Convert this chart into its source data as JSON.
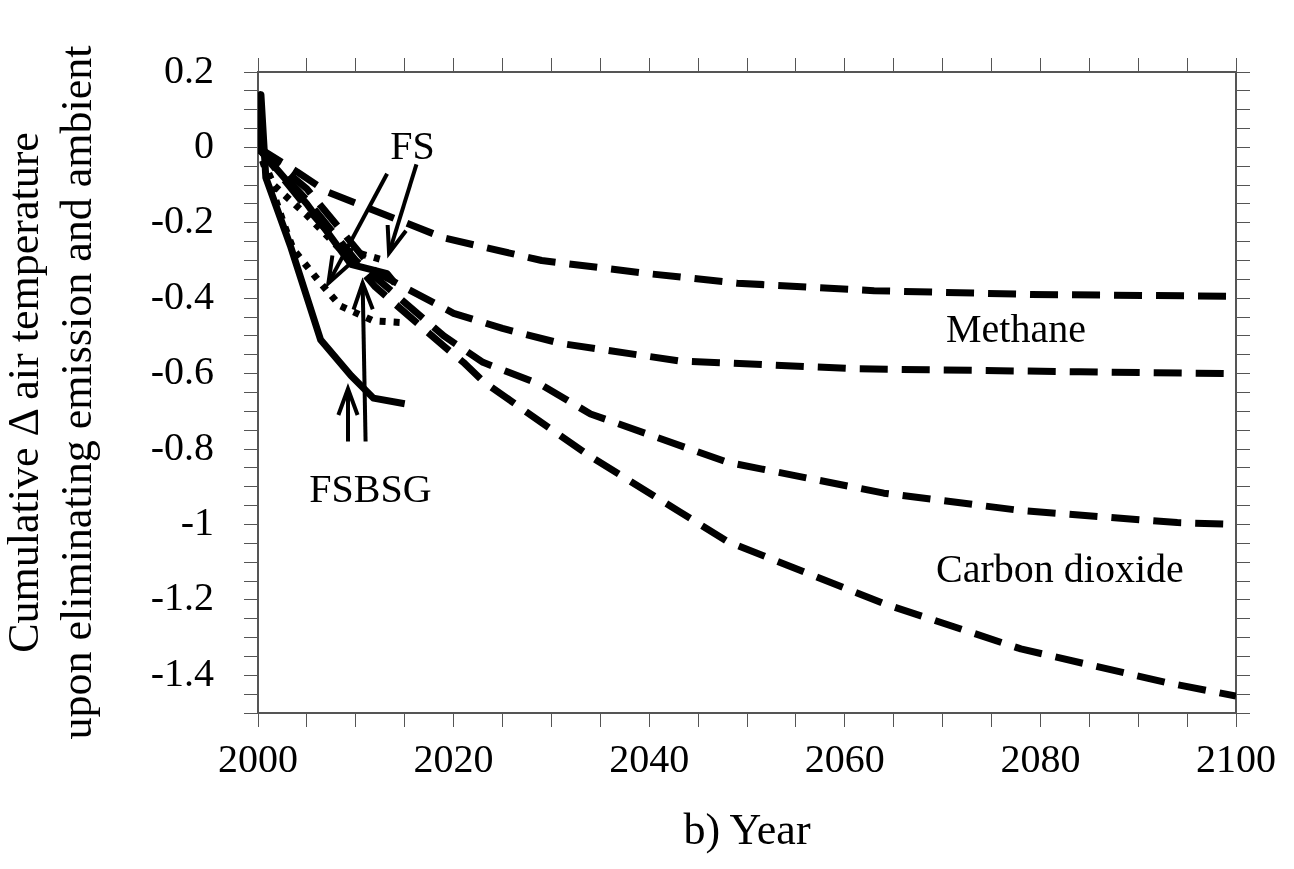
{
  "chart_data": {
    "type": "line",
    "xlabel": "b) Year",
    "ylabel": "Cumulative Δ air temperature\nupon eliminating emission and ambient",
    "xlim": [
      2000,
      2100
    ],
    "ylim": [
      -1.5,
      0.2
    ],
    "xticks": [
      2000,
      {
        "value": 2005,
        "label": null
      },
      {
        "value": 2010,
        "label": null
      },
      {
        "value": 2015,
        "label": null
      },
      2020,
      {
        "value": 2025,
        "label": null
      },
      {
        "value": 2030,
        "label": null
      },
      {
        "value": 2035,
        "label": null
      },
      2040,
      {
        "value": 2045,
        "label": null
      },
      {
        "value": 2050,
        "label": null
      },
      {
        "value": 2055,
        "label": null
      },
      2060,
      {
        "value": 2065,
        "label": null
      },
      {
        "value": 2070,
        "label": null
      },
      {
        "value": 2075,
        "label": null
      },
      2080,
      {
        "value": 2085,
        "label": null
      },
      {
        "value": 2090,
        "label": null
      },
      {
        "value": 2095,
        "label": null
      },
      2100
    ],
    "yticks": [
      0.2,
      {
        "value": 0.15,
        "label": null
      },
      {
        "value": 0.1,
        "label": null
      },
      {
        "value": 0.05,
        "label": null
      },
      0,
      {
        "value": -0.05,
        "label": null
      },
      {
        "value": -0.1,
        "label": null
      },
      {
        "value": -0.15,
        "label": null
      },
      -0.2,
      {
        "value": -0.25,
        "label": null
      },
      {
        "value": -0.3,
        "label": null
      },
      {
        "value": -0.35,
        "label": null
      },
      -0.4,
      {
        "value": -0.45,
        "label": null
      },
      {
        "value": -0.5,
        "label": null
      },
      {
        "value": -0.55,
        "label": null
      },
      -0.6,
      {
        "value": -0.65,
        "label": null
      },
      {
        "value": -0.7,
        "label": null
      },
      {
        "value": -0.75,
        "label": null
      },
      -0.8,
      {
        "value": -0.85,
        "label": null
      },
      {
        "value": -0.9,
        "label": null
      },
      {
        "value": -0.95,
        "label": null
      },
      -1,
      {
        "value": -1.05,
        "label": null
      },
      {
        "value": -1.1,
        "label": null
      },
      {
        "value": -1.15,
        "label": null
      },
      -1.2,
      {
        "value": -1.25,
        "label": null
      },
      {
        "value": -1.3,
        "label": null
      },
      {
        "value": -1.35,
        "label": null
      },
      -1.4,
      {
        "value": -1.45,
        "label": null
      },
      {
        "value": -1.5,
        "label": null
      }
    ],
    "grid": false,
    "legend": false,
    "marker": "none",
    "series": [
      {
        "color": "#000000",
        "line_style": "dashed",
        "x": [
          2000,
          2004,
          2007,
          2019,
          2029,
          2040,
          2049,
          2063,
          2079,
          2100
        ],
        "values": [
          0,
          -0.065,
          -0.117,
          -0.24,
          -0.3,
          -0.335,
          -0.36,
          -0.38,
          -0.39,
          -0.395
        ]
      },
      {
        "color": "#000000",
        "line_style": "dashed",
        "x": [
          2000,
          2005,
          2012,
          2020,
          2025,
          2031,
          2043,
          2061,
          2084,
          2100
        ],
        "values": [
          0,
          -0.11,
          -0.33,
          -0.44,
          -0.48,
          -0.52,
          -0.566,
          -0.587,
          -0.595,
          -0.6
        ]
      },
      {
        "color": "#000000",
        "line_style": "dashed",
        "x": [
          2000,
          2005,
          2010,
          2019,
          2023,
          2029,
          2034,
          2048,
          2064,
          2078,
          2094,
          2100
        ],
        "values": [
          0,
          -0.14,
          -0.3,
          -0.5,
          -0.57,
          -0.63,
          -0.707,
          -0.835,
          -0.917,
          -0.963,
          -0.995,
          -1
        ]
      },
      {
        "color": "#000000",
        "line_style": "dashed",
        "x": [
          2000,
          2005,
          2012,
          2019,
          2021,
          2023,
          2026,
          2029,
          2034,
          2048,
          2064,
          2078,
          2093,
          2100
        ],
        "values": [
          0,
          -0.16,
          -0.37,
          -0.527,
          -0.57,
          -0.62,
          -0.675,
          -0.73,
          -0.82,
          -1.045,
          -1.21,
          -1.33,
          -1.42,
          -1.455
        ]
      },
      {
        "color": "#000000",
        "line_style": "solid",
        "x": [
          2000,
          2000.3,
          2000.8,
          2003.3,
          2006.4,
          2009.5,
          2011.8,
          2015
        ],
        "values": [
          0,
          0.14,
          -0.08,
          -0.26,
          -0.51,
          -0.605,
          -0.665,
          -0.68
        ]
      },
      {
        "color": "#000000",
        "line_style": "dotted",
        "x": [
          2000,
          2002.6,
          2003.6,
          2006.4,
          2008.4,
          2011.8,
          2015
        ],
        "values": [
          0,
          -0.2,
          -0.27,
          -0.36,
          -0.42,
          -0.46,
          -0.465
        ]
      },
      {
        "color": "#000000",
        "line_style": "dotted",
        "x": [
          2000,
          2001.6,
          2005,
          2008.4,
          2010.2,
          2013
        ],
        "values": [
          0,
          -0.1,
          -0.18,
          -0.27,
          -0.28,
          -0.3
        ]
      },
      {
        "color": "#000000",
        "line_style": "solid",
        "x": [
          2000,
          2005,
          2009.5,
          2013.2,
          2014
        ],
        "values": [
          0,
          -0.15,
          -0.31,
          -0.335,
          -0.36
        ]
      }
    ],
    "annotations": [
      {
        "text": "FS",
        "x": 2013.4,
        "y": -0.28
      },
      "Methane",
      "Carbon dioxide",
      {
        "text": "FSBSG",
        "x": 2010.7,
        "y": -0.36
      }
    ]
  }
}
